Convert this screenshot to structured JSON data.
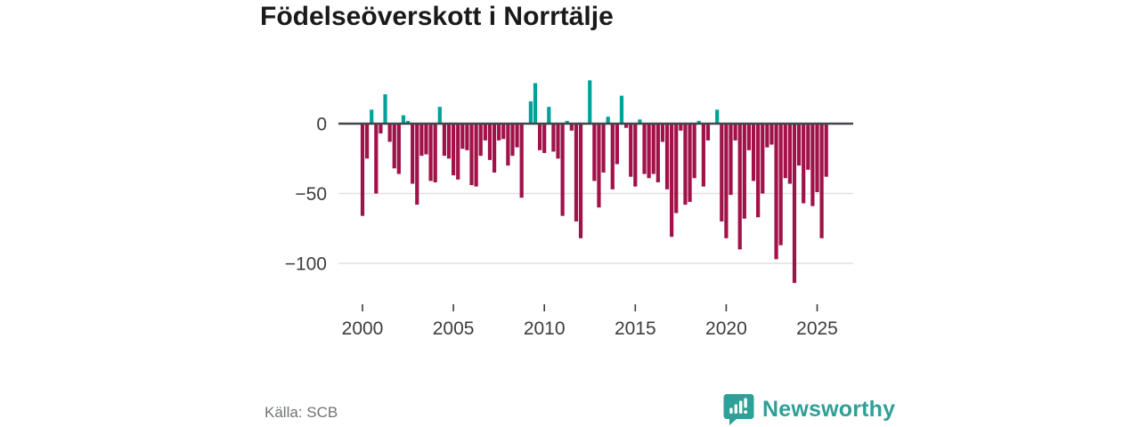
{
  "title": "Födelseöverskott i Norrtälje",
  "source": "Källa: SCB",
  "branding": {
    "name": "Newsworthy",
    "logo_icon": "bar-chart-speech-bubble",
    "color": "#2fa097"
  },
  "chart_data": {
    "type": "bar",
    "title": "Födelseöverskott i Norrtälje",
    "xlabel": "",
    "ylabel": "",
    "frequency": "quarterly",
    "x_start": {
      "year": 2000,
      "quarter": 1
    },
    "x_end": {
      "year": 2025,
      "quarter": 3
    },
    "values": [
      -66,
      -25,
      10,
      -50,
      -7,
      21,
      -13,
      -32,
      -36,
      6,
      2,
      -43,
      -58,
      -23,
      -22,
      -41,
      -42,
      12,
      -23,
      -25,
      -37,
      -40,
      -18,
      -19,
      -44,
      -45,
      -23,
      -12,
      -26,
      -35,
      -12,
      -11,
      -30,
      -23,
      -17,
      -53,
      0,
      16,
      29,
      -19,
      -21,
      12,
      -20,
      -25,
      -66,
      2,
      -5,
      -70,
      -82,
      0,
      31,
      -41,
      -60,
      -35,
      5,
      -47,
      -29,
      20,
      -3,
      -38,
      -45,
      3,
      -36,
      -39,
      -36,
      -42,
      -13,
      -47,
      -81,
      -64,
      -5,
      -58,
      -56,
      -39,
      2,
      -45,
      -12,
      0,
      10,
      -70,
      -82,
      -51,
      -12,
      -90,
      -68,
      -19,
      -41,
      -67,
      -50,
      -17,
      -15,
      -97,
      -87,
      -39,
      -43,
      -114,
      -30,
      -57,
      -33,
      -59,
      -49,
      -82,
      -38
    ],
    "x_tick_years": [
      2000,
      2005,
      2010,
      2015,
      2020,
      2025
    ],
    "y_ticks": [
      0,
      -50,
      -100
    ],
    "y_tick_labels": [
      "0",
      "−50",
      "−100"
    ],
    "ylim": [
      -120,
      35
    ],
    "grid": "horizontal",
    "legend": "none",
    "colors": {
      "positive": "#00a19a",
      "negative": "#a01249"
    }
  }
}
